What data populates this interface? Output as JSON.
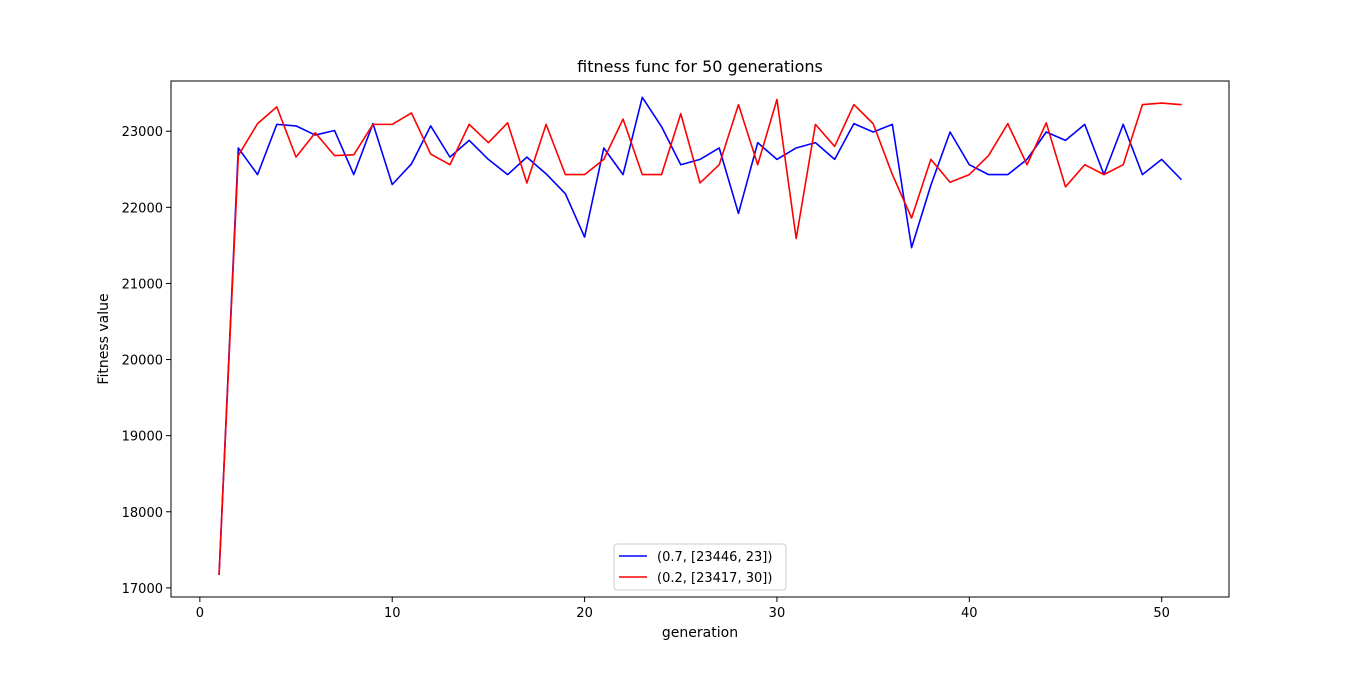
{
  "chart_data": {
    "type": "line",
    "title": "fitness func for 50 generations",
    "xlabel": "generation",
    "ylabel": "Fitness value",
    "xlim": [
      -1.5,
      53.5
    ],
    "ylim": [
      16880,
      23660
    ],
    "xticks": [
      0,
      10,
      20,
      30,
      40,
      50
    ],
    "yticks": [
      17000,
      18000,
      19000,
      20000,
      21000,
      22000,
      23000
    ],
    "xtick_labels": [
      "0",
      "10",
      "20",
      "30",
      "40",
      "50"
    ],
    "ytick_labels": [
      "17000",
      "18000",
      "19000",
      "20000",
      "21000",
      "22000",
      "23000"
    ],
    "grid": false,
    "legend_position": "lower center",
    "x": [
      1,
      2,
      3,
      4,
      5,
      6,
      7,
      8,
      9,
      10,
      11,
      12,
      13,
      14,
      15,
      16,
      17,
      18,
      19,
      20,
      21,
      22,
      23,
      24,
      25,
      26,
      27,
      28,
      29,
      30,
      31,
      32,
      33,
      34,
      35,
      36,
      37,
      38,
      39,
      40,
      41,
      42,
      43,
      44,
      45,
      46,
      47,
      48,
      49,
      50,
      51
    ],
    "series": [
      {
        "name": "(0.7, [23446, 23])",
        "color": "#0000ff",
        "values": [
          17180,
          22780,
          22430,
          23090,
          23070,
          22950,
          23010,
          22430,
          23100,
          22300,
          22570,
          23070,
          22660,
          22880,
          22630,
          22430,
          22660,
          22440,
          22180,
          21610,
          22780,
          22430,
          23446,
          23060,
          22560,
          22630,
          22780,
          21920,
          22850,
          22630,
          22780,
          22850,
          22630,
          23100,
          22990,
          23090,
          21470,
          22290,
          22990,
          22560,
          22430,
          22430,
          22630,
          22990,
          22880,
          23090,
          22430,
          23090,
          22430,
          22630,
          22370
        ]
      },
      {
        "name": "(0.2, [23417, 30])",
        "color": "#ff0000",
        "values": [
          17180,
          22680,
          23100,
          23320,
          22660,
          22980,
          22680,
          22690,
          23090,
          23090,
          23240,
          22700,
          22560,
          23090,
          22850,
          23110,
          22320,
          23090,
          22430,
          22430,
          22630,
          23160,
          22430,
          22430,
          23230,
          22320,
          22560,
          23350,
          22560,
          23417,
          21590,
          23090,
          22800,
          23350,
          23100,
          22430,
          21860,
          22630,
          22330,
          22430,
          22680,
          23100,
          22560,
          23110,
          22270,
          22560,
          22430,
          22560,
          23350,
          23370,
          23350
        ]
      }
    ]
  }
}
